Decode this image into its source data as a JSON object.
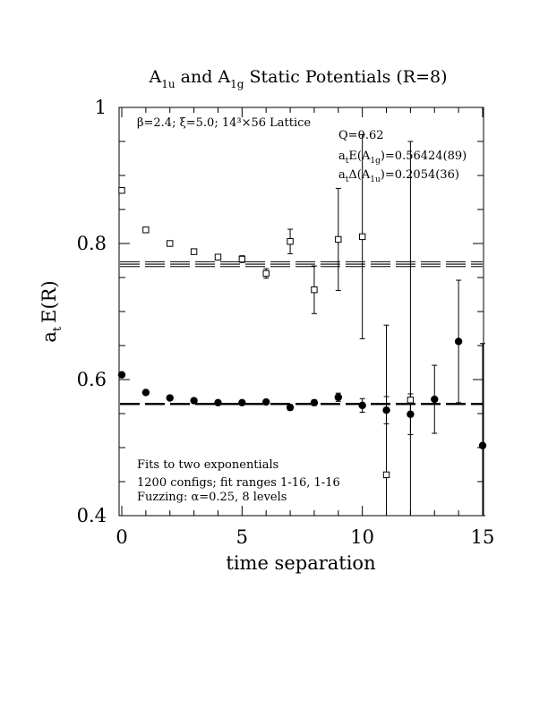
{
  "chart_data": {
    "type": "scatter",
    "title": "A1u and A1g Static Potentials (R=8)",
    "title_parts": {
      "a": "A",
      "a_sub": "1u",
      "mid": " and A",
      "b_sub": "1g",
      "rest": " Static Potentials (R=8)"
    },
    "xlabel": "time separation",
    "ylabel": "E(R)",
    "ylabel_prefix": "a",
    "ylabel_sub": "t",
    "xlim": [
      0,
      15
    ],
    "ylim": [
      0.4,
      1.0
    ],
    "xticks": [
      "0",
      "5",
      "10",
      "15"
    ],
    "xtick_values": [
      0,
      5,
      10,
      15
    ],
    "yticks": [
      "0.4",
      "0.6",
      "0.8",
      "1"
    ],
    "ytick_values": [
      0.4,
      0.6,
      0.8,
      1.0
    ],
    "lattice_label": "β=2.4; ξ=5.0; 14³×56 Lattice",
    "fit_info": {
      "q": "Q=0.62",
      "e_prefix": "a",
      "e_sub": "t",
      "e_mid": "E(A",
      "e_sub2": "1g",
      "e_rest": ")=0.56424(89)",
      "d_prefix": "a",
      "d_sub": "t",
      "d_mid": "Δ(A",
      "d_sub2": "1u",
      "d_rest": ")=0.2054(36)"
    },
    "notes": [
      "Fits to two exponentials",
      "1200 configs; fit ranges 1-16, 1-16",
      "Fuzzing: α=0.25, 8 levels"
    ],
    "series": [
      {
        "marker": "filled-circle",
        "x": [
          0,
          1,
          2,
          3,
          4,
          5,
          6,
          7,
          8,
          9,
          10,
          11,
          12,
          13,
          14,
          15
        ],
        "y": [
          0.607,
          0.581,
          0.573,
          0.569,
          0.566,
          0.566,
          0.567,
          0.559,
          0.566,
          0.574,
          0.562,
          0.555,
          0.549,
          0.571,
          0.656,
          0.503
        ],
        "yerr": [
          0.001,
          0.001,
          0.001,
          0.002,
          0.002,
          0.003,
          0.003,
          0.004,
          0.004,
          0.006,
          0.01,
          0.02,
          0.03,
          0.05,
          0.09,
          0.15
        ]
      },
      {
        "marker": "open-square",
        "x": [
          0,
          1,
          2,
          3,
          4,
          5,
          6,
          7,
          8,
          9,
          10,
          11,
          12
        ],
        "y": [
          0.878,
          0.82,
          0.8,
          0.788,
          0.78,
          0.777,
          0.756,
          0.803,
          0.732,
          0.806,
          0.81,
          0.46,
          0.57
        ],
        "yerr": [
          0.002,
          0.002,
          0.003,
          0.003,
          0.004,
          0.005,
          0.007,
          0.018,
          0.035,
          0.075,
          0.15,
          0.22,
          0.38
        ]
      }
    ],
    "fit_lines": [
      {
        "style": "dashed",
        "y": 0.56424,
        "err": 0.00089,
        "x_range": [
          0,
          15
        ]
      },
      {
        "style": "dashed",
        "y": 0.76964,
        "err": 0.0036,
        "x_range": [
          0,
          15
        ]
      }
    ]
  }
}
